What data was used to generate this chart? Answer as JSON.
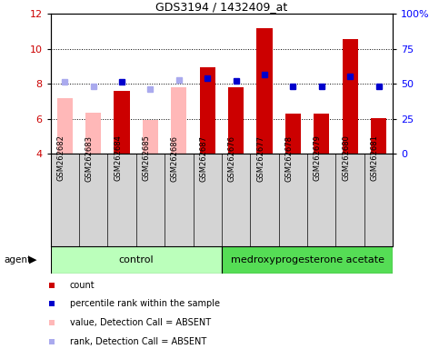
{
  "title": "GDS3194 / 1432409_at",
  "samples": [
    "GSM262682",
    "GSM262683",
    "GSM262684",
    "GSM262685",
    "GSM262686",
    "GSM262687",
    "GSM262676",
    "GSM262677",
    "GSM262678",
    "GSM262679",
    "GSM262680",
    "GSM262681"
  ],
  "bar_values": [
    null,
    null,
    7.6,
    null,
    null,
    8.95,
    7.8,
    11.2,
    6.3,
    6.3,
    10.55,
    6.05
  ],
  "bar_absent": [
    7.15,
    6.35,
    null,
    5.95,
    7.8,
    null,
    null,
    null,
    null,
    null,
    null,
    null
  ],
  "rank_present": [
    null,
    null,
    8.1,
    null,
    null,
    8.3,
    8.15,
    8.55,
    7.85,
    7.85,
    8.45,
    7.85
  ],
  "rank_absent": [
    8.1,
    7.85,
    null,
    7.7,
    8.2,
    null,
    null,
    null,
    null,
    null,
    null,
    null
  ],
  "ylim_left": [
    4,
    12
  ],
  "ylim_right": [
    0,
    100
  ],
  "yticks_left": [
    4,
    6,
    8,
    10,
    12
  ],
  "yticks_right": [
    0,
    25,
    50,
    75,
    100
  ],
  "bar_color_present": "#cc0000",
  "bar_color_absent": "#ffb8b8",
  "rank_color_present": "#0000cc",
  "rank_color_absent": "#aaaaee",
  "ctrl_color": "#bbffbb",
  "med_color": "#55dd55",
  "gray_bg": "#d4d4d4",
  "legend": [
    {
      "label": "count",
      "color": "#cc0000"
    },
    {
      "label": "percentile rank within the sample",
      "color": "#0000cc"
    },
    {
      "label": "value, Detection Call = ABSENT",
      "color": "#ffb8b8"
    },
    {
      "label": "rank, Detection Call = ABSENT",
      "color": "#aaaaee"
    }
  ],
  "figsize": [
    4.83,
    3.84
  ],
  "dpi": 100
}
